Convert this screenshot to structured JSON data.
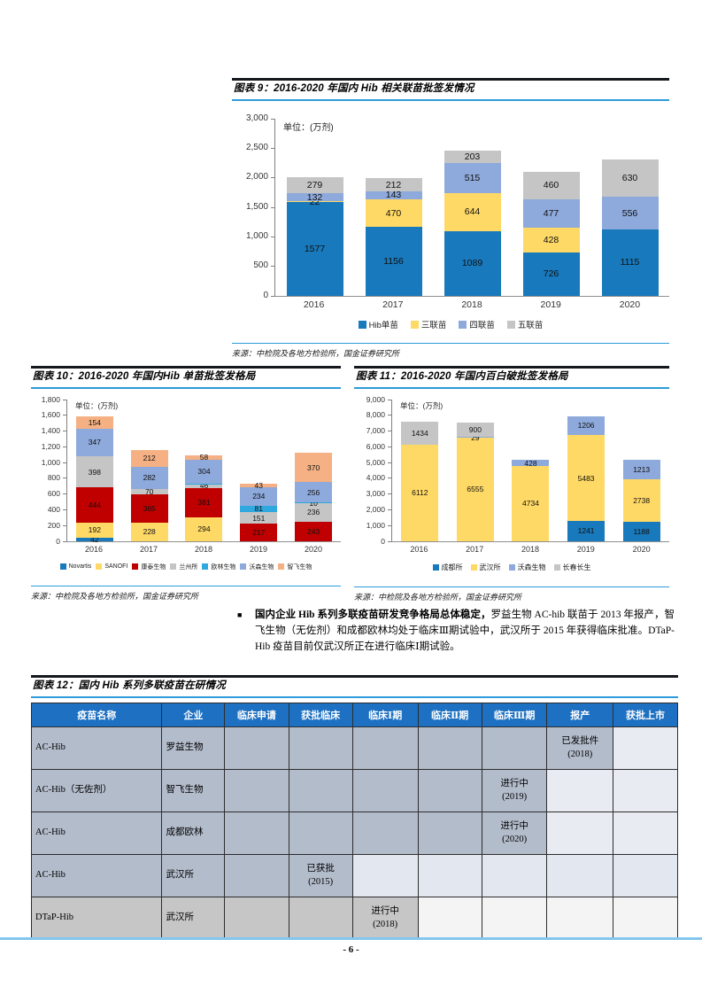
{
  "page": {
    "number_label": "- 6 -"
  },
  "chart_data": [
    {
      "id": "figure-9",
      "type": "stacked-bar",
      "title": "图表 9：2016-2020 年国内 Hib 相关联苗批签发情况",
      "unit_label": "单位：(万剂)",
      "source": "来源：中检院及各地方检验所，国金证券研究所",
      "categories": [
        "2016",
        "2017",
        "2018",
        "2019",
        "2020"
      ],
      "series": [
        {
          "name": "Hib单苗",
          "color": "#1879BC",
          "values": [
            1577,
            1156,
            1089,
            726,
            1115
          ]
        },
        {
          "name": "三联苗",
          "color": "#FFD965",
          "values": [
            22,
            470,
            644,
            428,
            0
          ]
        },
        {
          "name": "四联苗",
          "color": "#8EA9DB",
          "values": [
            132,
            143,
            515,
            477,
            556
          ]
        },
        {
          "name": "五联苗",
          "color": "#C5C5C5",
          "values": [
            279,
            212,
            203,
            460,
            630
          ]
        }
      ],
      "ylim": [
        0,
        3000
      ],
      "ytick_step": 500,
      "grid": false,
      "legend_position": "bottom"
    },
    {
      "id": "figure-10",
      "type": "stacked-bar",
      "title": "图表 10：2016-2020 年国内Hib 单苗批签发格局",
      "unit_label": "单位：(万剂)",
      "source": "来源：中检院及各地方检验所，国金证券研究所",
      "categories": [
        "2016",
        "2017",
        "2018",
        "2019",
        "2020"
      ],
      "series": [
        {
          "name": "Novartis",
          "color": "#1879BC",
          "values": [
            42,
            0,
            0,
            0,
            0
          ]
        },
        {
          "name": "SANOFI",
          "color": "#FFD965",
          "values": [
            192,
            228,
            294,
            0,
            0
          ]
        },
        {
          "name": "康泰生物",
          "color": "#C00000",
          "values": [
            444,
            365,
            381,
            217,
            243
          ]
        },
        {
          "name": "兰州所",
          "color": "#C5C5C5",
          "values": [
            398,
            70,
            46,
            151,
            236
          ]
        },
        {
          "name": "欧林生物",
          "color": "#2EA8DF",
          "values": [
            0,
            0,
            6,
            81,
            10
          ]
        },
        {
          "name": "沃森生物",
          "color": "#8EA9DB",
          "values": [
            347,
            282,
            304,
            234,
            256
          ]
        },
        {
          "name": "智飞生物",
          "color": "#F5B183",
          "values": [
            154,
            212,
            58,
            43,
            370
          ]
        }
      ],
      "ylim": [
        0,
        1800
      ],
      "ytick_step": 200,
      "grid": false,
      "legend_position": "bottom"
    },
    {
      "id": "figure-11",
      "type": "stacked-bar",
      "title": "图表 11：2016-2020 年国内百白破批签发格局",
      "unit_label": "单位：(万剂)",
      "source": "来源：中检院及各地方检验所，国金证券研究所",
      "categories": [
        "2016",
        "2017",
        "2018",
        "2019",
        "2020"
      ],
      "series": [
        {
          "name": "成都所",
          "color": "#1879BC",
          "values": [
            0,
            0,
            0,
            1241,
            1188
          ]
        },
        {
          "name": "武汉所",
          "color": "#FFD965",
          "values": [
            6112,
            6555,
            4734,
            5483,
            2738
          ]
        },
        {
          "name": "沃森生物",
          "color": "#8EA9DB",
          "values": [
            0,
            29,
            428,
            1206,
            1213
          ]
        },
        {
          "name": "长春长生",
          "color": "#C5C5C5",
          "values": [
            1434,
            900,
            0,
            0,
            0
          ]
        }
      ],
      "ylim": [
        0,
        9000
      ],
      "ytick_step": 1000,
      "grid": false,
      "legend_position": "bottom"
    }
  ],
  "paragraph": {
    "bullet": "■",
    "bold": "国内企业 Hib 系列多联疫苗研发竞争格局总体稳定，",
    "rest": "罗益生物 AC-hib 联苗于 2013 年报产，智飞生物（无佐剂）和成都欧林均处于临床Ⅲ期试验中，武汉所于 2015 年获得临床批准。DTaP-Hib 疫苗目前仅武汉所正在进行临床Ⅰ期试验。"
  },
  "figure12": {
    "title": "图表 12：国内 Hib 系列多联疫苗在研情况",
    "header_bg": "#1D70C2",
    "columns": [
      "疫苗名称",
      "企业",
      "临床申请",
      "获批临床",
      "临床Ⅰ期",
      "临床Ⅱ期",
      "临床Ⅲ期",
      "报产",
      "获批上市"
    ],
    "rows": [
      {
        "cells": [
          "AC-Hib",
          "罗益生物",
          "",
          "",
          "",
          "",
          "",
          "已发批件\n(2018)",
          ""
        ],
        "filled": 8,
        "fill": "#B3BCCB",
        "empty": "#E8EBF1"
      },
      {
        "cells": [
          "AC-Hib（无佐剂）",
          "智飞生物",
          "",
          "",
          "",
          "",
          "进行中\n(2019)",
          "",
          ""
        ],
        "filled": 7,
        "fill": "#B3BCCB",
        "empty": "#E8EBF1"
      },
      {
        "cells": [
          "AC-Hib",
          "成都欧林",
          "",
          "",
          "",
          "",
          "进行中\n(2020)",
          "",
          ""
        ],
        "filled": 7,
        "fill": "#B3BCCB",
        "empty": "#E8EBF1"
      },
      {
        "cells": [
          "AC-Hib",
          "武汉所",
          "",
          "已获批\n(2015)",
          "",
          "",
          "",
          "",
          ""
        ],
        "filled": 4,
        "fill": "#B3BCCB",
        "empty": "#E2E7F0"
      },
      {
        "cells": [
          "DTaP-Hib",
          "武汉所",
          "",
          "",
          "进行中\n(2018)",
          "",
          "",
          "",
          ""
        ],
        "filled": 5,
        "fill": "#C6C6C6",
        "empty": "#F4F4F4"
      }
    ]
  }
}
